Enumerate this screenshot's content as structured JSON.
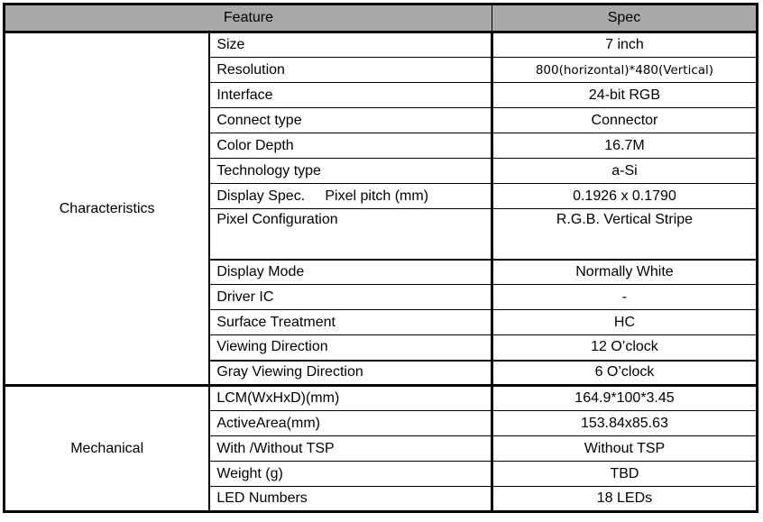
{
  "table": {
    "header": {
      "feature": "Feature",
      "spec": "Spec"
    },
    "header_bg": "#a9a9a9",
    "border_color": "#000000",
    "sections": [
      {
        "category": "Characteristics",
        "rows": [
          {
            "feature": "Size",
            "spec": "7 inch"
          },
          {
            "feature": "Resolution",
            "spec": "800(horizontal)*480(Vertical)"
          },
          {
            "feature": "Interface",
            "spec": "24-bit RGB"
          },
          {
            "feature": "Connect type",
            "spec": "Connector"
          },
          {
            "feature": "Color Depth",
            "spec": "16.7M"
          },
          {
            "feature": "Technology type",
            "spec": "a-Si"
          },
          {
            "feature": "Display Spec.     Pixel pitch (mm)",
            "spec": "0.1926 x 0.1790"
          },
          {
            "feature": "Pixel Configuration",
            "spec": "R.G.B. Vertical Stripe"
          },
          {
            "feature": "Display Mode",
            "spec": "Normally White"
          },
          {
            "feature": "Driver IC",
            "spec": "-"
          },
          {
            "feature": "Surface Treatment",
            "spec": "HC"
          },
          {
            "feature": "Viewing Direction",
            "spec": "12 O’clock"
          },
          {
            "feature": "Gray Viewing Direction",
            "spec": "6 O’clock"
          }
        ]
      },
      {
        "category": "Mechanical",
        "rows": [
          {
            "feature": "LCM(WxHxD)(mm)",
            "spec": "164.9*100*3.45"
          },
          {
            "feature": "ActiveArea(mm)",
            "spec": "153.84x85.63"
          },
          {
            "feature": "With /Without TSP",
            "spec": "Without TSP"
          },
          {
            "feature": "Weight (g)",
            "spec": "TBD"
          },
          {
            "feature": "LED Numbers",
            "spec": "18 LEDs"
          }
        ]
      }
    ]
  }
}
